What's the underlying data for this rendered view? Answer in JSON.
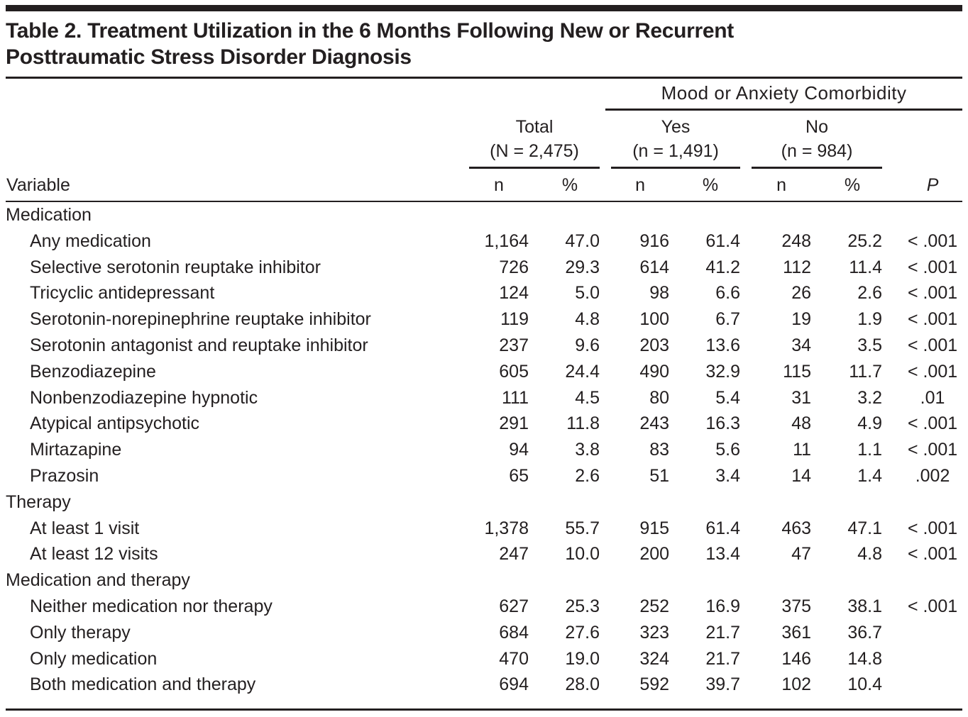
{
  "title": {
    "line1": "Table 2. Treatment Utilization in the 6 Months Following New or Recurrent",
    "line2": "Posttraumatic Stress Disorder Diagnosis"
  },
  "header": {
    "spanner": "Mood or Anxiety Comorbidity",
    "groups": [
      {
        "label": "Total",
        "sub": "(N = 2,475)"
      },
      {
        "label": "Yes",
        "sub": "(n = 1,491)"
      },
      {
        "label": "No",
        "sub": "(n = 984)"
      }
    ],
    "variable_label": "Variable",
    "n_label": "n",
    "pct_label": "%",
    "p_label": "P"
  },
  "rows": [
    {
      "label": "Medication",
      "section": true,
      "values": [
        "",
        "",
        "",
        "",
        "",
        "",
        ""
      ]
    },
    {
      "label": "Any medication",
      "section": false,
      "values": [
        "1,164",
        "47.0",
        "916",
        "61.4",
        "248",
        "25.2",
        "< .001"
      ]
    },
    {
      "label": "Selective serotonin reuptake inhibitor",
      "section": false,
      "values": [
        "726",
        "29.3",
        "614",
        "41.2",
        "112",
        "11.4",
        "< .001"
      ]
    },
    {
      "label": "Tricyclic antidepressant",
      "section": false,
      "values": [
        "124",
        "5.0",
        "98",
        "6.6",
        "26",
        "2.6",
        "< .001"
      ]
    },
    {
      "label": "Serotonin-norepinephrine reuptake inhibitor",
      "section": false,
      "values": [
        "119",
        "4.8",
        "100",
        "6.7",
        "19",
        "1.9",
        "< .001"
      ]
    },
    {
      "label": "Serotonin antagonist and reuptake inhibitor",
      "section": false,
      "values": [
        "237",
        "9.6",
        "203",
        "13.6",
        "34",
        "3.5",
        "< .001"
      ]
    },
    {
      "label": "Benzodiazepine",
      "section": false,
      "values": [
        "605",
        "24.4",
        "490",
        "32.9",
        "115",
        "11.7",
        "< .001"
      ]
    },
    {
      "label": "Nonbenzodiazepine hypnotic",
      "section": false,
      "values": [
        "111",
        "4.5",
        "80",
        "5.4",
        "31",
        "3.2",
        ".01"
      ]
    },
    {
      "label": "Atypical antipsychotic",
      "section": false,
      "values": [
        "291",
        "11.8",
        "243",
        "16.3",
        "48",
        "4.9",
        "< .001"
      ]
    },
    {
      "label": "Mirtazapine",
      "section": false,
      "values": [
        "94",
        "3.8",
        "83",
        "5.6",
        "11",
        "1.1",
        "< .001"
      ]
    },
    {
      "label": "Prazosin",
      "section": false,
      "values": [
        "65",
        "2.6",
        "51",
        "3.4",
        "14",
        "1.4",
        ".002"
      ]
    },
    {
      "label": "Therapy",
      "section": true,
      "values": [
        "",
        "",
        "",
        "",
        "",
        "",
        ""
      ]
    },
    {
      "label": "At least 1 visit",
      "section": false,
      "values": [
        "1,378",
        "55.7",
        "915",
        "61.4",
        "463",
        "47.1",
        "< .001"
      ]
    },
    {
      "label": "At least 12 visits",
      "section": false,
      "values": [
        "247",
        "10.0",
        "200",
        "13.4",
        "47",
        "4.8",
        "< .001"
      ]
    },
    {
      "label": "Medication and therapy",
      "section": true,
      "values": [
        "",
        "",
        "",
        "",
        "",
        "",
        ""
      ]
    },
    {
      "label": "Neither medication nor therapy",
      "section": false,
      "values": [
        "627",
        "25.3",
        "252",
        "16.9",
        "375",
        "38.1",
        "< .001"
      ]
    },
    {
      "label": "Only therapy",
      "section": false,
      "values": [
        "684",
        "27.6",
        "323",
        "21.7",
        "361",
        "36.7",
        ""
      ]
    },
    {
      "label": "Only medication",
      "section": false,
      "values": [
        "470",
        "19.0",
        "324",
        "21.7",
        "146",
        "14.8",
        ""
      ]
    },
    {
      "label": "Both medication and therapy",
      "section": false,
      "values": [
        "694",
        "28.0",
        "592",
        "39.7",
        "102",
        "10.4",
        ""
      ]
    }
  ],
  "colors": {
    "text": "#231f20",
    "rule": "#231f20",
    "top_bar": "#231f20",
    "background": "#ffffff"
  }
}
